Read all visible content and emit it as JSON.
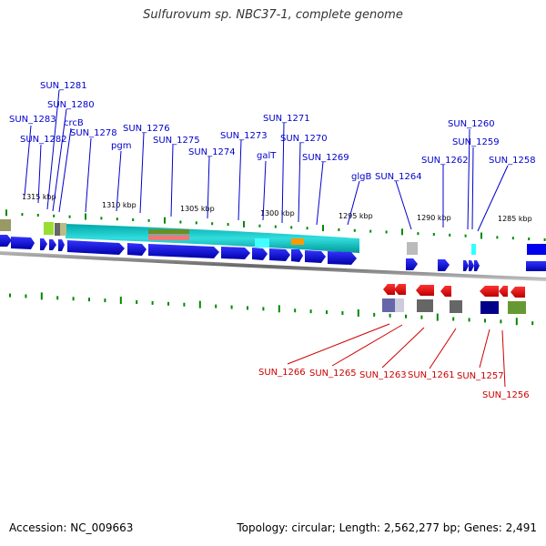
{
  "title": "Sulfurovum sp. NBC37-1, complete genome",
  "accession_label": "Accession: NC_009663",
  "summary": "Topology: circular; Length: 2,562,277 bp; Genes: 2,491",
  "colors": {
    "forward_label": "#0000cc",
    "reverse_label": "#cc0000",
    "forward_gene": "#0000ee",
    "reverse_gene": "#ee0000",
    "ticks": "#008800",
    "backbone": "#999999"
  },
  "scale_labels": [
    "1315 kbp",
    "1310 kbp",
    "1305 kbp",
    "1300 kbp",
    "1295 kbp",
    "1290 kbp",
    "1285 kbp"
  ],
  "forward_labels": [
    "SUN_1281",
    "SUN_1280",
    "SUN_1283",
    "crcB",
    "SUN_1282",
    "SUN_1278",
    "pgm",
    "SUN_1276",
    "SUN_1275",
    "SUN_1274",
    "SUN_1273",
    "SUN_1271",
    "galT",
    "SUN_1270",
    "SUN_1269",
    "glgB",
    "SUN_1264",
    "SUN_1260",
    "SUN_1259",
    "SUN_1262",
    "SUN_1258"
  ],
  "reverse_labels": [
    "SUN_1266",
    "SUN_1265",
    "SUN_1263",
    "SUN_1261",
    "SUN_1257",
    "SUN_1256"
  ]
}
